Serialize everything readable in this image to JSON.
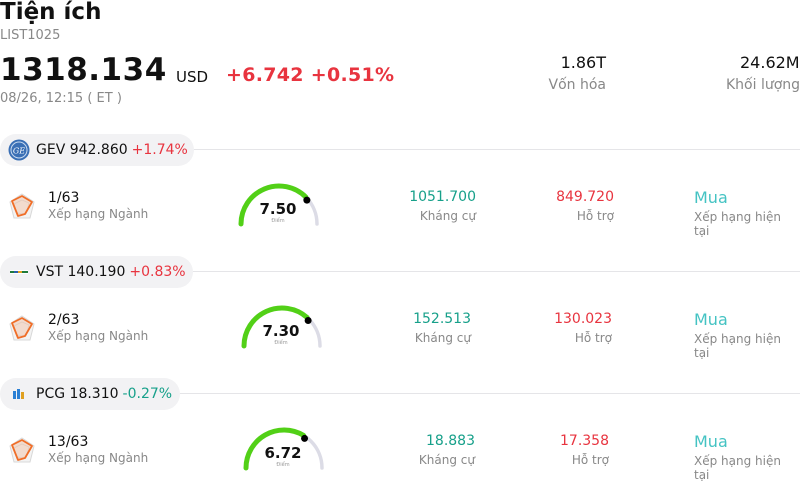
{
  "header": {
    "title": "Tiện ích",
    "code": "LIST1025",
    "price": "1318.134",
    "currency": "USD",
    "change": "+6.742",
    "change_pct": "+0.51%",
    "time": "08/26, 12:15  ( ET )",
    "market_cap_value": "1.86T",
    "market_cap_label": "Vốn hóa",
    "volume_value": "24.62M",
    "volume_label": "Khối lượng"
  },
  "labels": {
    "rank": "Xếp hạng Ngành",
    "score": "Điểm",
    "resistance": "Kháng cự",
    "support": "Hỗ trợ",
    "rating": "Xếp hạng hiện tại"
  },
  "stocks": [
    {
      "ticker": "GEV",
      "price": "942.860",
      "pct": "+1.74%",
      "direction": "up",
      "rank": "1/63",
      "score": "7.50",
      "score_fraction": 0.75,
      "resistance": "1051.700",
      "support": "849.720",
      "rating": "Mua",
      "logo_icon": "ge-vernova-logo-icon"
    },
    {
      "ticker": "VST",
      "price": "140.190",
      "pct": "+0.83%",
      "direction": "up",
      "rank": "2/63",
      "score": "7.30",
      "score_fraction": 0.73,
      "resistance": "152.513",
      "support": "130.023",
      "rating": "Mua",
      "logo_icon": "vistra-logo-icon"
    },
    {
      "ticker": "PCG",
      "price": "18.310",
      "pct": "-0.27%",
      "direction": "down",
      "rank": "13/63",
      "score": "6.72",
      "score_fraction": 0.672,
      "resistance": "18.883",
      "support": "17.358",
      "rating": "Mua",
      "logo_icon": "pge-logo-icon"
    }
  ],
  "colors": {
    "up": "#e8343f",
    "down": "#17a08a",
    "gauge_fill": "#52d017",
    "gauge_track": "#dcdce6",
    "rating": "#44c3c3"
  }
}
